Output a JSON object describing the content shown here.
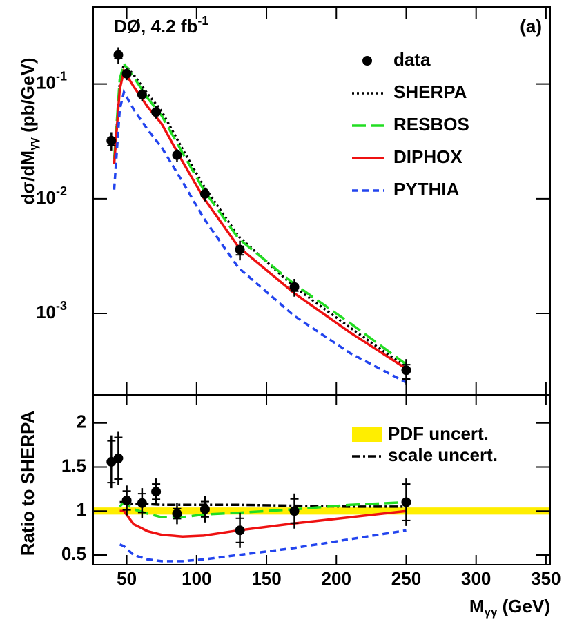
{
  "chart_data": [
    {
      "type": "line",
      "log_y": true,
      "annotation": {
        "text": "DØ, 4.2 fb",
        "sup": "-1"
      },
      "panel_label": "(a)",
      "ylabel": {
        "main": "dσ/dM",
        "sub": "γγ",
        "unit": " (pb/GeV)"
      },
      "xlim": [
        26,
        353
      ],
      "ylim": [
        0.000195,
        0.47
      ],
      "yticks": [
        {
          "value": 0.001,
          "label": "10",
          "exp": "-3"
        },
        {
          "value": 0.01,
          "label": "10",
          "exp": "-2"
        },
        {
          "value": 0.1,
          "label": "10",
          "exp": "-1"
        }
      ],
      "legend": "upper right",
      "x": [
        41,
        45,
        48,
        55,
        65,
        75,
        90,
        105,
        130,
        170,
        210,
        250
      ],
      "series": [
        {
          "name": "SHERPA",
          "color": "#000000",
          "style": "dotted",
          "values": [
            0.02,
            0.1,
            0.15,
            0.12,
            0.082,
            0.058,
            0.027,
            0.013,
            0.0047,
            0.0017,
            0.00075,
            0.00034
          ]
        },
        {
          "name": "RESBOS",
          "color": "#22dd22",
          "style": "longdash",
          "values": [
            0.022,
            0.11,
            0.15,
            0.115,
            0.075,
            0.053,
            0.025,
            0.012,
            0.0045,
            0.0018,
            0.00082,
            0.00036
          ]
        },
        {
          "name": "DIPHOX",
          "color": "#ee1111",
          "style": "solid",
          "values": [
            0.02,
            0.09,
            0.13,
            0.095,
            0.063,
            0.045,
            0.021,
            0.0102,
            0.0038,
            0.0015,
            0.00068,
            0.00033
          ]
        },
        {
          "name": "PYTHIA",
          "color": "#2244ee",
          "style": "dash",
          "values": [
            0.012,
            0.06,
            0.085,
            0.06,
            0.04,
            0.028,
            0.014,
            0.0068,
            0.0025,
            0.00095,
            0.00045,
            0.00025
          ]
        }
      ],
      "data": {
        "name": "data",
        "color": "#000000",
        "x": [
          39,
          44,
          50,
          61,
          71,
          86,
          106,
          131,
          170,
          250
        ],
        "values": [
          0.032,
          0.179,
          0.123,
          0.081,
          0.057,
          0.024,
          0.011,
          0.0036,
          0.0017,
          0.00032
        ],
        "errors": [
          0.006,
          0.03,
          0.015,
          0.01,
          0.007,
          0.003,
          0.0015,
          0.0007,
          0.0003,
          8e-05
        ]
      }
    },
    {
      "type": "line",
      "ylabel": "Ratio to SHERPA",
      "xlabel": {
        "main": "M",
        "sub": "γγ",
        "unit": " (GeV)"
      },
      "xlim": [
        26,
        353
      ],
      "ylim": [
        0.39,
        2.32
      ],
      "xticks": [
        50,
        100,
        150,
        200,
        250,
        300,
        350
      ],
      "yticks": [
        0.5,
        1,
        1.5,
        2
      ],
      "band": {
        "name": "PDF uncert.",
        "color": "#ffee00",
        "x": [
          26,
          353
        ],
        "lower": [
          0.96,
          0.96
        ],
        "upper": [
          1.04,
          1.04
        ]
      },
      "x": [
        45,
        48,
        55,
        65,
        75,
        90,
        105,
        130,
        170,
        210,
        250
      ],
      "series": [
        {
          "name": "scale uncert.",
          "color": "#000000",
          "style": "dashdot",
          "values": [
            1.1,
            1.1,
            1.08,
            1.08,
            1.07,
            1.07,
            1.07,
            1.07,
            1.06,
            1.05,
            1.05
          ]
        },
        {
          "color": "#22dd22",
          "style": "longdash",
          "values": [
            1.05,
            1.1,
            1.02,
            0.97,
            0.93,
            0.93,
            0.96,
            0.98,
            1.02,
            1.07,
            1.1
          ]
        },
        {
          "color": "#ee1111",
          "style": "solid",
          "values": [
            1.0,
            1.0,
            0.85,
            0.77,
            0.73,
            0.71,
            0.72,
            0.78,
            0.86,
            0.93,
            1.0
          ]
        },
        {
          "color": "#2244ee",
          "style": "dash",
          "values": [
            0.62,
            0.6,
            0.5,
            0.45,
            0.43,
            0.43,
            0.45,
            0.5,
            0.58,
            0.68,
            0.78
          ]
        }
      ],
      "data": {
        "color": "#000000",
        "x": [
          39,
          44,
          50,
          61,
          71,
          86,
          106,
          131,
          170,
          250
        ],
        "values": [
          1.56,
          1.6,
          1.12,
          1.09,
          1.22,
          0.97,
          1.02,
          0.78,
          1.0,
          1.1
        ],
        "errors": [
          0.3,
          0.3,
          0.17,
          0.17,
          0.15,
          0.12,
          0.15,
          0.2,
          0.2,
          0.27
        ]
      }
    }
  ]
}
